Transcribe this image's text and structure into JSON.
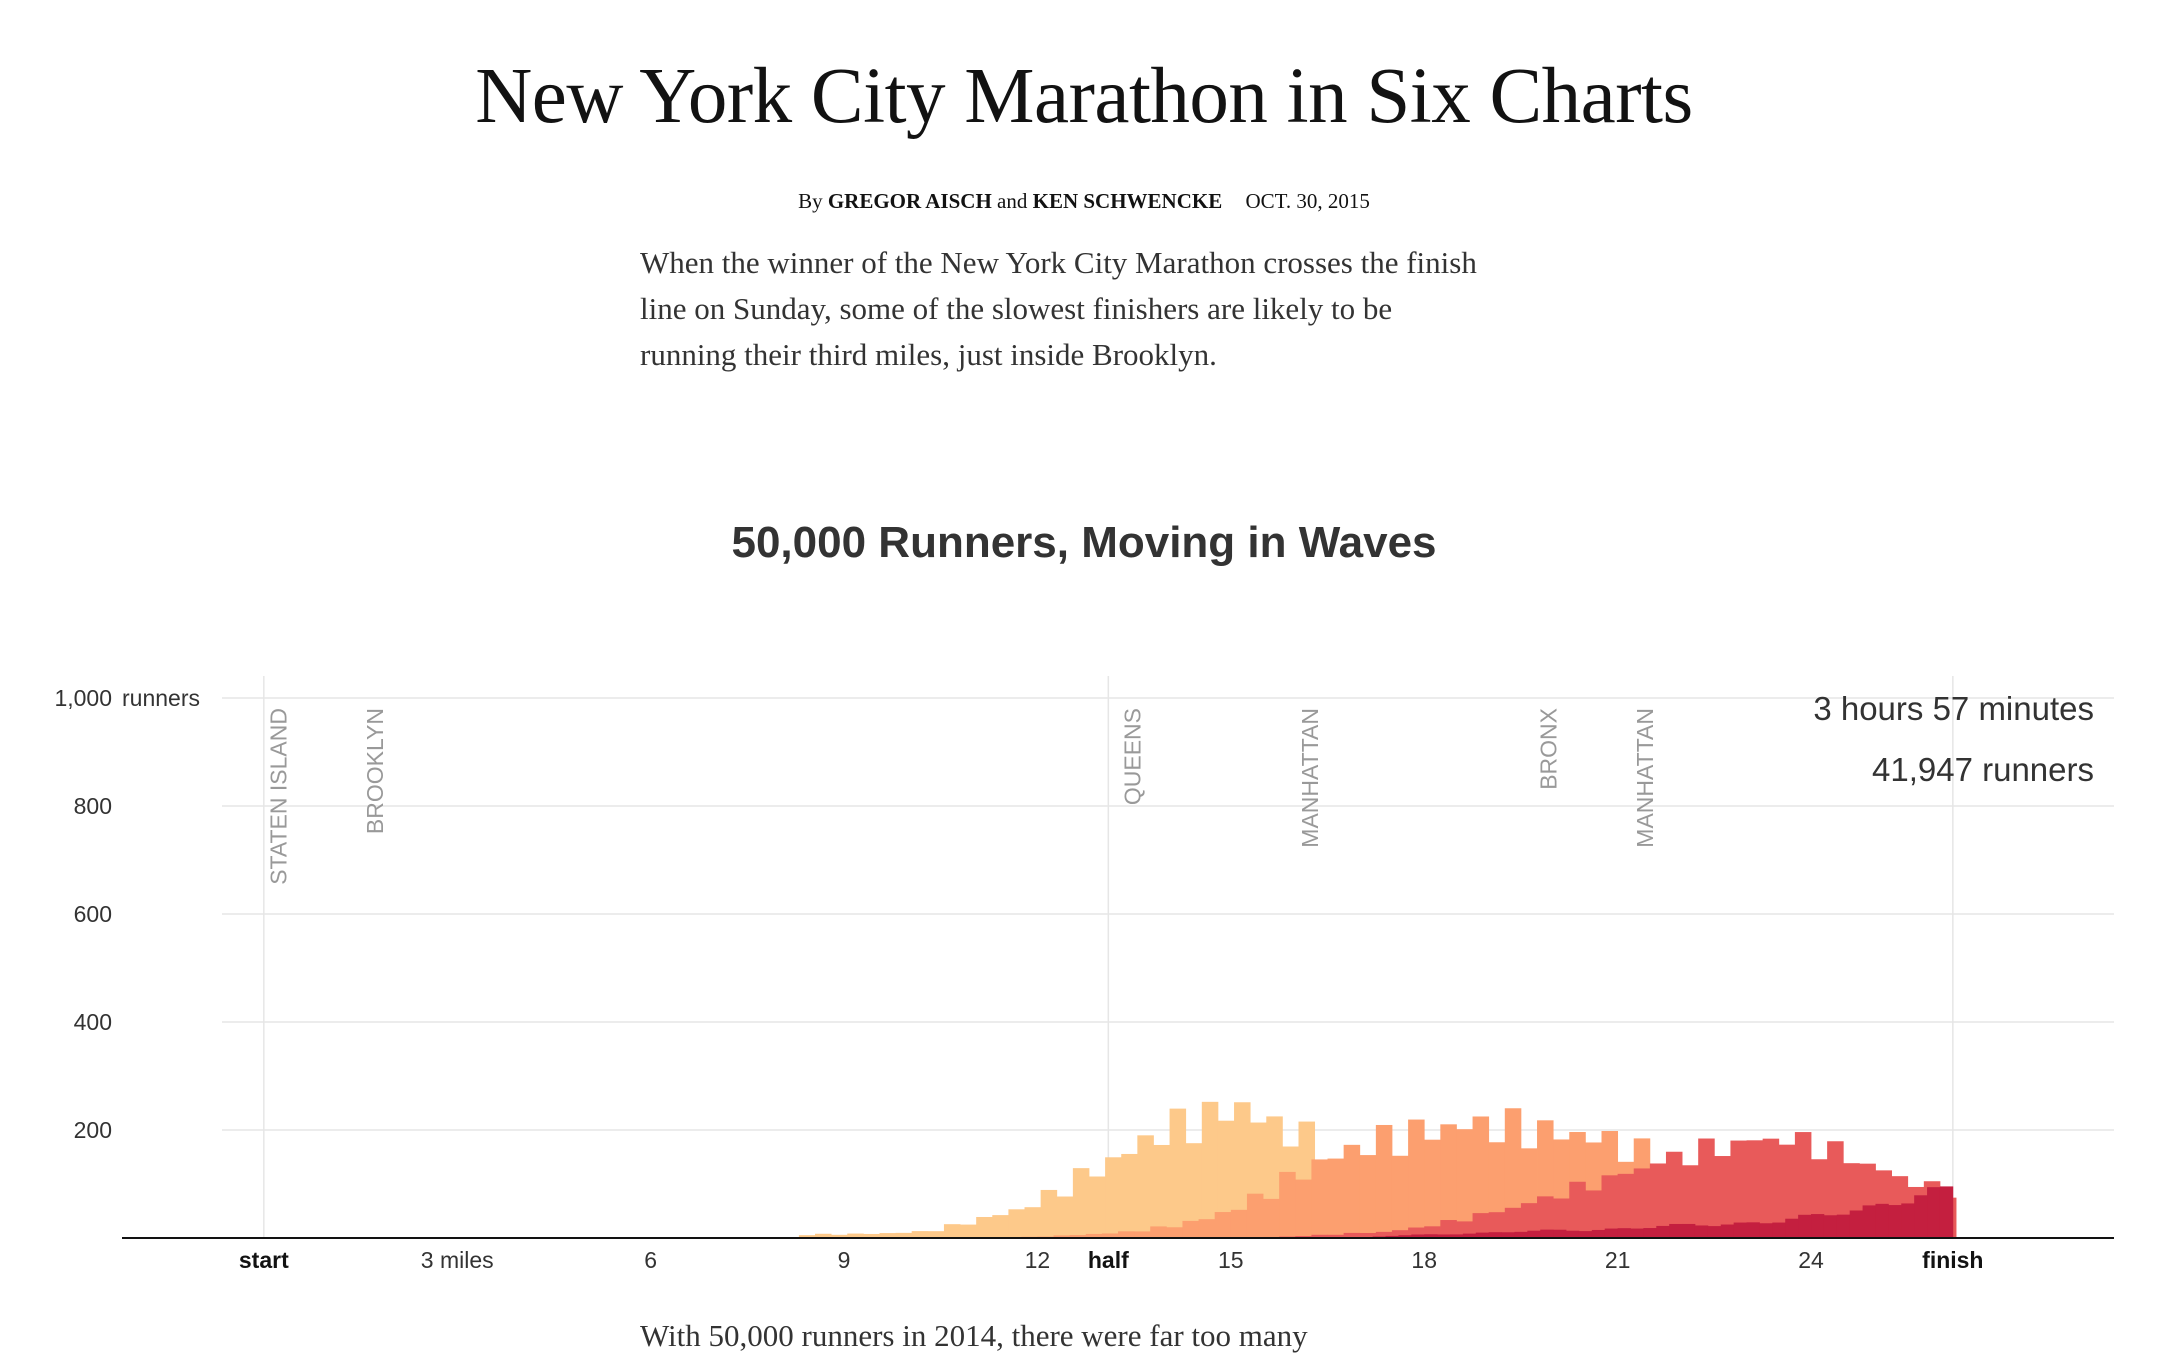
{
  "article": {
    "headline": "New York City Marathon in Six Charts",
    "byline_prefix": "By",
    "author1": "GREGOR AISCH",
    "byline_and": "and",
    "author2": "KEN SCHWENCKE",
    "date": "OCT. 30, 2015",
    "intro": "When the winner of the New York City Marathon crosses the finish line on Sunday, some of the slowest finishers are likely to be running their third miles, just inside Brooklyn.",
    "outro": "With 50,000 runners in 2014, there were far too many"
  },
  "chart_data": {
    "type": "area",
    "title": "50,000 Runners, Moving in Waves",
    "y_unit": "runners",
    "ylim": [
      0,
      1000
    ],
    "yticks": [
      200,
      400,
      600,
      800,
      1000
    ],
    "ytick_labels": [
      "200",
      "400",
      "600",
      "800",
      "1,000"
    ],
    "xlim": [
      -2.2,
      28.7
    ],
    "xticks": [
      {
        "value": 0,
        "label": "start",
        "bold": true
      },
      {
        "value": 3,
        "label": "3 miles",
        "bold": false
      },
      {
        "value": 6,
        "label": "6",
        "bold": false
      },
      {
        "value": 9,
        "label": "9",
        "bold": false
      },
      {
        "value": 12,
        "label": "12",
        "bold": false
      },
      {
        "value": 13.1,
        "label": "half",
        "bold": true
      },
      {
        "value": 15,
        "label": "15",
        "bold": false
      },
      {
        "value": 18,
        "label": "18",
        "bold": false
      },
      {
        "value": 21,
        "label": "21",
        "bold": false
      },
      {
        "value": 24,
        "label": "24",
        "bold": false
      },
      {
        "value": 26.2,
        "label": "finish",
        "bold": true
      }
    ],
    "vertical_gridlines": [
      0,
      13.1,
      26.2
    ],
    "boroughs": [
      {
        "name": "STATEN ISLAND",
        "mile": 0.35
      },
      {
        "name": "BROOKLYN",
        "mile": 1.85
      },
      {
        "name": "QUEENS",
        "mile": 13.6
      },
      {
        "name": "MANHATTAN",
        "mile": 16.35
      },
      {
        "name": "BRONX",
        "mile": 20.05
      },
      {
        "name": "MANHATTAN",
        "mile": 21.55
      }
    ],
    "annotation": {
      "time": "3 hours 57 minutes",
      "count": "41,947 runners"
    },
    "grid": true,
    "legend": "none",
    "series": [
      {
        "color": "#fdc98a",
        "bins_per_mile": 4,
        "points": [
          [
            8.3,
            6
          ],
          [
            9.5,
            8
          ],
          [
            10.3,
            12
          ],
          [
            10.8,
            25
          ],
          [
            11.3,
            40
          ],
          [
            11.8,
            55
          ],
          [
            12.3,
            85
          ],
          [
            12.8,
            120
          ],
          [
            13.3,
            150
          ],
          [
            13.8,
            190
          ],
          [
            14.3,
            210
          ],
          [
            14.8,
            225
          ],
          [
            15.1,
            250
          ],
          [
            15.5,
            215
          ],
          [
            16.0,
            195
          ],
          [
            16.5,
            160
          ],
          [
            16.9,
            90
          ],
          [
            17.2,
            40
          ],
          [
            17.6,
            10
          ],
          [
            18.0,
            0
          ]
        ]
      },
      {
        "color": "#fc9f6f",
        "bins_per_mile": 4,
        "points": [
          [
            11.5,
            0
          ],
          [
            12.5,
            5
          ],
          [
            13.3,
            10
          ],
          [
            14.0,
            20
          ],
          [
            14.6,
            35
          ],
          [
            15.2,
            60
          ],
          [
            15.8,
            100
          ],
          [
            16.4,
            140
          ],
          [
            17.0,
            170
          ],
          [
            17.6,
            185
          ],
          [
            18.2,
            200
          ],
          [
            18.7,
            210
          ],
          [
            19.3,
            205
          ],
          [
            19.9,
            195
          ],
          [
            20.5,
            190
          ],
          [
            21.0,
            175
          ],
          [
            21.5,
            150
          ],
          [
            22.0,
            90
          ],
          [
            22.5,
            40
          ],
          [
            23.0,
            10
          ],
          [
            23.5,
            0
          ]
        ]
      },
      {
        "color": "#e85a5a",
        "bins_per_mile": 4,
        "points": [
          [
            15.0,
            0
          ],
          [
            16.0,
            3
          ],
          [
            16.8,
            8
          ],
          [
            17.5,
            12
          ],
          [
            18.2,
            25
          ],
          [
            18.8,
            40
          ],
          [
            19.5,
            60
          ],
          [
            20.2,
            85
          ],
          [
            20.9,
            110
          ],
          [
            21.6,
            140
          ],
          [
            22.3,
            160
          ],
          [
            22.9,
            175
          ],
          [
            23.4,
            185
          ],
          [
            24.0,
            175
          ],
          [
            24.6,
            150
          ],
          [
            25.2,
            120
          ],
          [
            25.8,
            95
          ],
          [
            26.2,
            85
          ]
        ]
      },
      {
        "color": "#c41f3f",
        "bins_per_mile": 5,
        "points": [
          [
            16.8,
            0
          ],
          [
            17.5,
            4
          ],
          [
            18.5,
            8
          ],
          [
            19.5,
            12
          ],
          [
            20.5,
            15
          ],
          [
            21.5,
            20
          ],
          [
            22.5,
            25
          ],
          [
            23.5,
            32
          ],
          [
            24.2,
            40
          ],
          [
            24.8,
            55
          ],
          [
            25.3,
            70
          ],
          [
            25.8,
            80
          ],
          [
            26.2,
            85
          ]
        ]
      }
    ]
  }
}
